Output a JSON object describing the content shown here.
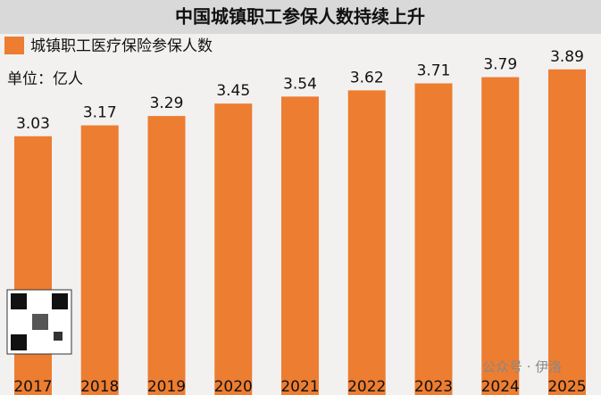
{
  "chart_data": {
    "type": "bar",
    "title": "中国城镇职工参保人数持续上升",
    "series": [
      {
        "name": "城镇职工医疗保险参保人数",
        "color": "#ed7d31",
        "values": [
          3.03,
          3.17,
          3.29,
          3.45,
          3.54,
          3.62,
          3.71,
          3.79,
          3.89
        ]
      }
    ],
    "categories": [
      "2017",
      "2018",
      "2019",
      "2020",
      "2021",
      "2022",
      "2023",
      "2024",
      "2025"
    ],
    "unit_label": "单位：亿人",
    "watermark": "公众号 · 伊洛"
  }
}
